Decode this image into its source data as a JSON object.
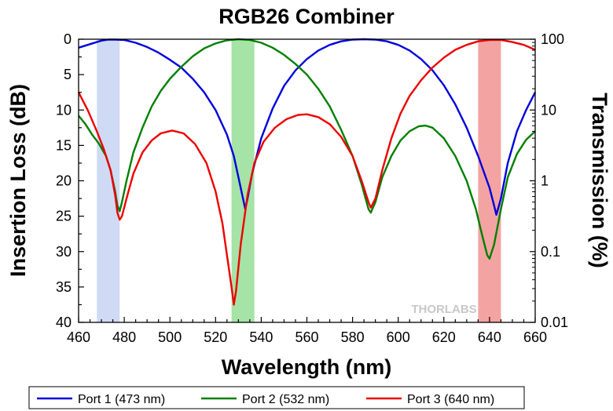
{
  "chart_data": {
    "type": "line",
    "title": "RGB26 Combiner",
    "xlabel": "Wavelength (nm)",
    "ylabel": "Insertion Loss (dB)",
    "y2label": "Transmission (%)",
    "xlim": [
      460,
      660
    ],
    "ylim": [
      40,
      0
    ],
    "y2lim": [
      0.01,
      100
    ],
    "y2_scale": "log",
    "x_ticks": [
      "460",
      "480",
      "500",
      "520",
      "540",
      "560",
      "580",
      "600",
      "620",
      "640",
      "660"
    ],
    "y_ticks": [
      "0",
      "5",
      "10",
      "15",
      "20",
      "25",
      "30",
      "35",
      "40"
    ],
    "y2_ticks": [
      "100",
      "10",
      "1",
      "0.1",
      "0.01"
    ],
    "grid": false,
    "legend_position": "bottom",
    "brand": "THORLABS",
    "bands": [
      {
        "x_start": 468,
        "x_end": 478,
        "color": "#cfdaf5"
      },
      {
        "x_start": 527,
        "x_end": 537,
        "color": "#a6e3a6"
      },
      {
        "x_start": 635,
        "x_end": 645,
        "color": "#f4a3a3"
      }
    ],
    "series": [
      {
        "name": "Port 1 (473 nm)",
        "color": "#0000dd",
        "points": [
          [
            460,
            1.2
          ],
          [
            465,
            0.7
          ],
          [
            470,
            0.2
          ],
          [
            473,
            0.05
          ],
          [
            476,
            0.05
          ],
          [
            480,
            0.1
          ],
          [
            485,
            0.5
          ],
          [
            490,
            1.1
          ],
          [
            495,
            1.9
          ],
          [
            500,
            2.9
          ],
          [
            505,
            4.0
          ],
          [
            510,
            5.6
          ],
          [
            515,
            7.5
          ],
          [
            520,
            10.0
          ],
          [
            525,
            13.5
          ],
          [
            528,
            16.5
          ],
          [
            530,
            19.5
          ],
          [
            532,
            22.5
          ],
          [
            533,
            24.0
          ],
          [
            534,
            22.5
          ],
          [
            536,
            19.0
          ],
          [
            540,
            14.0
          ],
          [
            545,
            9.8
          ],
          [
            550,
            6.6
          ],
          [
            555,
            4.4
          ],
          [
            560,
            2.8
          ],
          [
            565,
            1.6
          ],
          [
            570,
            0.8
          ],
          [
            575,
            0.3
          ],
          [
            580,
            0.05
          ],
          [
            585,
            0.0
          ],
          [
            590,
            0.05
          ],
          [
            595,
            0.3
          ],
          [
            600,
            0.8
          ],
          [
            605,
            1.6
          ],
          [
            610,
            2.8
          ],
          [
            615,
            4.4
          ],
          [
            620,
            6.5
          ],
          [
            625,
            9.2
          ],
          [
            630,
            12.5
          ],
          [
            635,
            16.5
          ],
          [
            640,
            21.0
          ],
          [
            642,
            23.5
          ],
          [
            643,
            24.8
          ],
          [
            645,
            22.5
          ],
          [
            648,
            17.5
          ],
          [
            652,
            13.0
          ],
          [
            656,
            10.0
          ],
          [
            660,
            7.5
          ]
        ]
      },
      {
        "name": "Port 2 (532 nm)",
        "color": "#008000",
        "points": [
          [
            460,
            10.8
          ],
          [
            463,
            12.0
          ],
          [
            466,
            13.5
          ],
          [
            469,
            14.8
          ],
          [
            472,
            16.5
          ],
          [
            474,
            18.5
          ],
          [
            476,
            21.5
          ],
          [
            477,
            23.5
          ],
          [
            478,
            24.3
          ],
          [
            479,
            23.0
          ],
          [
            481,
            20.0
          ],
          [
            484,
            16.0
          ],
          [
            488,
            12.5
          ],
          [
            492,
            9.5
          ],
          [
            496,
            7.3
          ],
          [
            500,
            5.6
          ],
          [
            505,
            3.9
          ],
          [
            510,
            2.4
          ],
          [
            515,
            1.3
          ],
          [
            520,
            0.6
          ],
          [
            525,
            0.15
          ],
          [
            530,
            0.0
          ],
          [
            535,
            0.1
          ],
          [
            540,
            0.5
          ],
          [
            545,
            1.2
          ],
          [
            550,
            2.2
          ],
          [
            555,
            3.5
          ],
          [
            560,
            5.0
          ],
          [
            565,
            7.0
          ],
          [
            570,
            9.5
          ],
          [
            575,
            12.8
          ],
          [
            580,
            16.5
          ],
          [
            584,
            20.5
          ],
          [
            587,
            24.0
          ],
          [
            588,
            24.5
          ],
          [
            590,
            23.0
          ],
          [
            593,
            19.5
          ],
          [
            597,
            16.5
          ],
          [
            601,
            14.3
          ],
          [
            605,
            13.0
          ],
          [
            609,
            12.3
          ],
          [
            612,
            12.2
          ],
          [
            615,
            12.5
          ],
          [
            620,
            14.0
          ],
          [
            625,
            16.5
          ],
          [
            630,
            20.0
          ],
          [
            634,
            24.0
          ],
          [
            637,
            28.0
          ],
          [
            639,
            30.5
          ],
          [
            640,
            31.0
          ],
          [
            642,
            29.0
          ],
          [
            645,
            24.0
          ],
          [
            648,
            19.5
          ],
          [
            652,
            16.2
          ],
          [
            656,
            14.2
          ],
          [
            660,
            13.0
          ]
        ]
      },
      {
        "name": "Port 3 (640 nm)",
        "color": "#ee0000",
        "points": [
          [
            460,
            7.5
          ],
          [
            464,
            10.0
          ],
          [
            468,
            13.0
          ],
          [
            471,
            15.5
          ],
          [
            474,
            18.5
          ],
          [
            476,
            22.0
          ],
          [
            477,
            24.5
          ],
          [
            478,
            25.5
          ],
          [
            479,
            25.0
          ],
          [
            481,
            22.5
          ],
          [
            484,
            19.0
          ],
          [
            488,
            16.0
          ],
          [
            492,
            14.3
          ],
          [
            496,
            13.3
          ],
          [
            501,
            12.9
          ],
          [
            506,
            13.3
          ],
          [
            511,
            14.8
          ],
          [
            516,
            17.5
          ],
          [
            520,
            21.5
          ],
          [
            523,
            26.0
          ],
          [
            525,
            30.5
          ],
          [
            527,
            35.0
          ],
          [
            528,
            37.5
          ],
          [
            529,
            35.5
          ],
          [
            531,
            29.0
          ],
          [
            534,
            22.0
          ],
          [
            537,
            17.5
          ],
          [
            541,
            14.5
          ],
          [
            546,
            12.5
          ],
          [
            551,
            11.3
          ],
          [
            556,
            10.7
          ],
          [
            560,
            10.6
          ],
          [
            565,
            11.0
          ],
          [
            570,
            12.0
          ],
          [
            575,
            13.8
          ],
          [
            580,
            16.5
          ],
          [
            584,
            20.0
          ],
          [
            587,
            23.0
          ],
          [
            588,
            23.8
          ],
          [
            590,
            22.5
          ],
          [
            593,
            18.5
          ],
          [
            597,
            14.0
          ],
          [
            601,
            10.5
          ],
          [
            605,
            8.0
          ],
          [
            610,
            5.8
          ],
          [
            615,
            4.0
          ],
          [
            620,
            2.6
          ],
          [
            625,
            1.5
          ],
          [
            630,
            0.8
          ],
          [
            635,
            0.3
          ],
          [
            640,
            0.1
          ],
          [
            645,
            0.1
          ],
          [
            650,
            0.4
          ],
          [
            655,
            0.8
          ],
          [
            660,
            1.5
          ]
        ]
      }
    ]
  }
}
